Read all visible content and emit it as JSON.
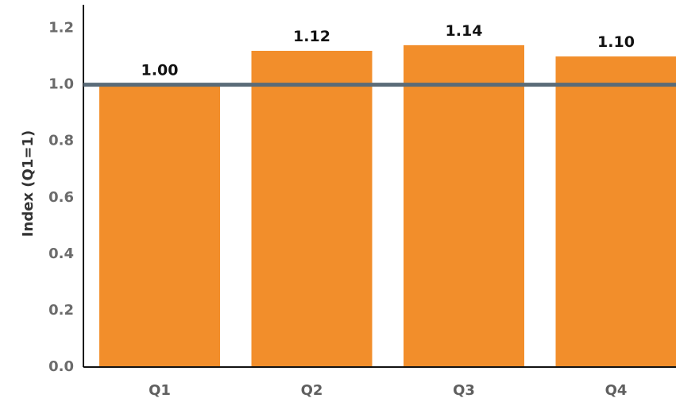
{
  "chart_data": {
    "type": "bar",
    "categories": [
      "Q1",
      "Q2",
      "Q3",
      "Q4"
    ],
    "values": [
      1.0,
      1.12,
      1.14,
      1.1
    ],
    "data_labels": [
      "1.00",
      "1.12",
      "1.14",
      "1.10"
    ],
    "title": "",
    "xlabel": "",
    "ylabel": "Index (Q1=1)",
    "ylim": [
      0,
      1.3
    ],
    "yticks": [
      0.0,
      0.2,
      0.4,
      0.6,
      0.8,
      1.0,
      1.2
    ],
    "ytick_labels": [
      "0.0",
      "0.2",
      "0.4",
      "0.6",
      "0.8",
      "1.0",
      "1.2"
    ],
    "reference_line": 1.0,
    "grid": false,
    "legend": "none",
    "colors": {
      "bar": "#F28E2B",
      "reference_line": "#5A6B78",
      "axis": "#111111"
    }
  }
}
